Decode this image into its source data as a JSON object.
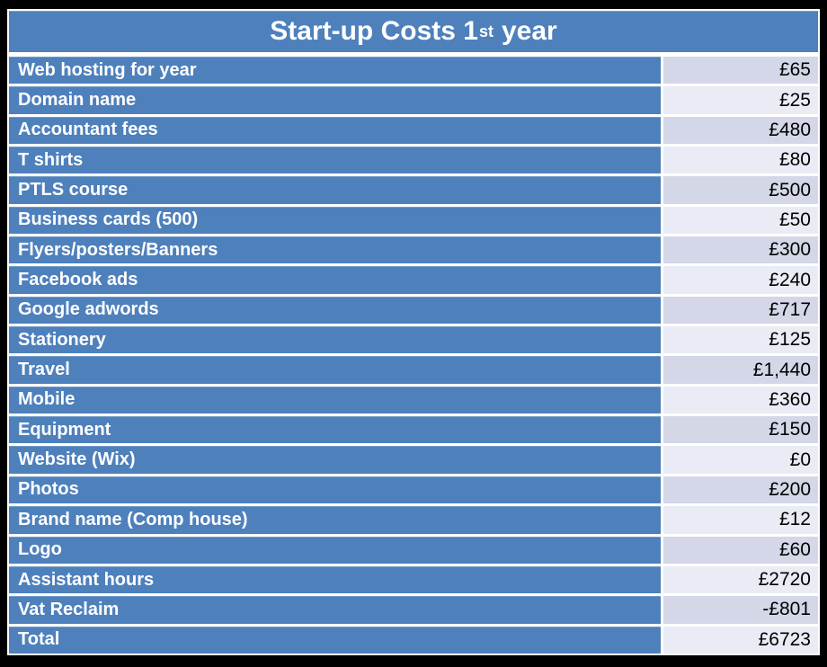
{
  "title": {
    "main": "Start-up Costs 1",
    "sup": "st",
    "tail": "year"
  },
  "chart_data": {
    "type": "table",
    "title": "Start-up Costs 1st year",
    "currency": "£",
    "rows": [
      [
        "Web hosting for year",
        "£65"
      ],
      [
        "Domain name",
        "£25"
      ],
      [
        "Accountant fees",
        "£480"
      ],
      [
        "T shirts",
        "£80"
      ],
      [
        "PTLS course",
        "£500"
      ],
      [
        "Business cards (500)",
        "£50"
      ],
      [
        "Flyers/posters/Banners",
        "£300"
      ],
      [
        "Facebook ads",
        "£240"
      ],
      [
        "Google adwords",
        "£717"
      ],
      [
        "Stationery",
        "£125"
      ],
      [
        "Travel",
        "£1,440"
      ],
      [
        "Mobile",
        "£360"
      ],
      [
        "Equipment",
        "£150"
      ],
      [
        "Website (Wix)",
        "£0"
      ],
      [
        "Photos",
        "£200"
      ],
      [
        "Brand name (Comp house)",
        "£12"
      ],
      [
        "Logo",
        "£60"
      ],
      [
        "Assistant hours",
        "£2720"
      ],
      [
        "Vat Reclaim",
        "-£801"
      ],
      [
        "Total",
        "£6723"
      ]
    ],
    "values_numeric": [
      65,
      25,
      480,
      80,
      500,
      50,
      300,
      240,
      717,
      125,
      1440,
      360,
      150,
      0,
      200,
      12,
      60,
      2720,
      -801,
      6723
    ],
    "layout": {
      "label_column_align": "left",
      "value_column_align": "right",
      "row_striping": "value column alternates dark/light starting dark"
    }
  },
  "colors": {
    "header_blue": "#4e80bc",
    "row_blue": "#4e80bc",
    "value_dark": "#d3d7e7",
    "value_light": "#eaecf5",
    "frame_black": "#000000",
    "divider_white": "#ffffff",
    "label_text": "#ffffff",
    "value_text": "#000000"
  }
}
